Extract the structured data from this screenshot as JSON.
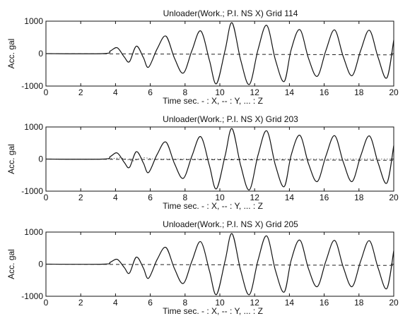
{
  "chart_data": [
    {
      "type": "line",
      "title": "Unloader(Work.; P.I. NS X)    Grid 114",
      "xlabel": "Time  sec.   - : X, -- : Y, ... : Z",
      "ylabel": "Acc. gal",
      "xlim": [
        0,
        20
      ],
      "ylim": [
        -1000,
        1000
      ],
      "x_ticks": [
        0,
        2,
        4,
        6,
        8,
        10,
        12,
        14,
        16,
        18,
        20
      ],
      "x_tick_labels": [
        "0",
        "2",
        "4",
        "6",
        "8",
        "10",
        "12",
        "14",
        "16",
        "18",
        "20"
      ],
      "y_ticks": [
        -1000,
        0,
        1000
      ],
      "y_tick_labels": [
        "-1000",
        "0",
        "1000"
      ],
      "grid": false,
      "series": [
        {
          "style": "solid",
          "x": [
            0,
            3.3,
            3.7,
            4.1,
            4.5,
            4.8,
            5.2,
            5.6,
            5.9,
            6.4,
            6.9,
            7.4,
            7.9,
            8.4,
            8.9,
            9.4,
            9.8,
            10.3,
            10.7,
            11.2,
            11.7,
            12.2,
            12.7,
            13.2,
            13.7,
            14.1,
            14.6,
            15.1,
            15.6,
            16.1,
            16.6,
            17.1,
            17.6,
            18.1,
            18.6,
            19.1,
            19.6,
            20.0
          ],
          "y": [
            0,
            0,
            80,
            180,
            -100,
            -250,
            230,
            -120,
            -420,
            150,
            540,
            -150,
            -600,
            100,
            700,
            -200,
            -930,
            100,
            950,
            -200,
            -950,
            130,
            870,
            -200,
            -860,
            120,
            740,
            -150,
            -700,
            100,
            730,
            -100,
            -680,
            100,
            720,
            -120,
            -750,
            420
          ]
        },
        {
          "style": "dashed",
          "x": [
            0,
            20
          ],
          "y": [
            0,
            -40
          ]
        }
      ]
    },
    {
      "type": "line",
      "title": "Unloader(Work.; P.I. NS X)    Grid 203",
      "xlabel": "Time  sec.   - : X, -- : Y, ... : Z",
      "ylabel": "Acc. gal",
      "xlim": [
        0,
        20
      ],
      "ylim": [
        -1000,
        1000
      ],
      "x_ticks": [
        0,
        2,
        4,
        6,
        8,
        10,
        12,
        14,
        16,
        18,
        20
      ],
      "x_tick_labels": [
        "0",
        "2",
        "4",
        "6",
        "8",
        "10",
        "12",
        "14",
        "16",
        "18",
        "20"
      ],
      "y_ticks": [
        -1000,
        0,
        1000
      ],
      "y_tick_labels": [
        "-1000",
        "0",
        "1000"
      ],
      "grid": false,
      "series": [
        {
          "style": "solid",
          "x": [
            0,
            3.3,
            3.7,
            4.1,
            4.5,
            4.8,
            5.2,
            5.6,
            5.9,
            6.4,
            6.9,
            7.4,
            7.9,
            8.4,
            8.9,
            9.4,
            9.8,
            10.3,
            10.7,
            11.2,
            11.7,
            12.2,
            12.7,
            13.2,
            13.7,
            14.1,
            14.6,
            15.1,
            15.6,
            16.1,
            16.6,
            17.1,
            17.6,
            18.1,
            18.6,
            19.1,
            19.6,
            20.0
          ],
          "y": [
            0,
            0,
            80,
            190,
            -100,
            -260,
            230,
            -120,
            -420,
            150,
            530,
            -150,
            -600,
            100,
            700,
            -200,
            -930,
            100,
            950,
            -200,
            -960,
            130,
            880,
            -200,
            -860,
            120,
            740,
            -150,
            -700,
            100,
            730,
            -100,
            -700,
            100,
            720,
            -120,
            -750,
            420
          ]
        },
        {
          "style": "dashed",
          "x": [
            0,
            20
          ],
          "y": [
            0,
            -40
          ]
        },
        {
          "style": "dotted",
          "x": [
            0,
            3.5,
            4.3,
            5.0,
            5.6,
            6.2,
            20
          ],
          "y": [
            0,
            0,
            40,
            -60,
            50,
            0,
            0
          ]
        }
      ]
    },
    {
      "type": "line",
      "title": "Unloader(Work.; P.I. NS X)    Grid 205",
      "xlabel": "Time  sec.   - : X, -- : Y, ... : Z",
      "ylabel": "Acc. gal",
      "xlim": [
        0,
        20
      ],
      "ylim": [
        -1000,
        1000
      ],
      "x_ticks": [
        0,
        2,
        4,
        6,
        8,
        10,
        12,
        14,
        16,
        18,
        20
      ],
      "x_tick_labels": [
        "0",
        "2",
        "4",
        "6",
        "8",
        "10",
        "12",
        "14",
        "16",
        "18",
        "20"
      ],
      "y_ticks": [
        -1000,
        0,
        1000
      ],
      "y_tick_labels": [
        "-1000",
        "0",
        "1000"
      ],
      "grid": false,
      "series": [
        {
          "style": "solid",
          "x": [
            0,
            3.3,
            3.7,
            4.1,
            4.5,
            4.8,
            5.2,
            5.6,
            5.9,
            6.4,
            6.9,
            7.4,
            7.9,
            8.4,
            8.9,
            9.4,
            9.8,
            10.3,
            10.7,
            11.2,
            11.7,
            12.2,
            12.7,
            13.2,
            13.7,
            14.1,
            14.6,
            15.1,
            15.6,
            16.1,
            16.6,
            17.1,
            17.6,
            18.1,
            18.6,
            19.1,
            19.6,
            20.0
          ],
          "y": [
            0,
            0,
            60,
            150,
            -100,
            -280,
            220,
            -120,
            -440,
            150,
            520,
            -150,
            -600,
            100,
            700,
            -200,
            -950,
            100,
            950,
            -200,
            -950,
            130,
            880,
            -200,
            -870,
            120,
            750,
            -150,
            -700,
            100,
            740,
            -100,
            -700,
            100,
            730,
            -120,
            -760,
            420
          ]
        },
        {
          "style": "dashed",
          "x": [
            0,
            20
          ],
          "y": [
            0,
            -40
          ]
        }
      ]
    }
  ]
}
